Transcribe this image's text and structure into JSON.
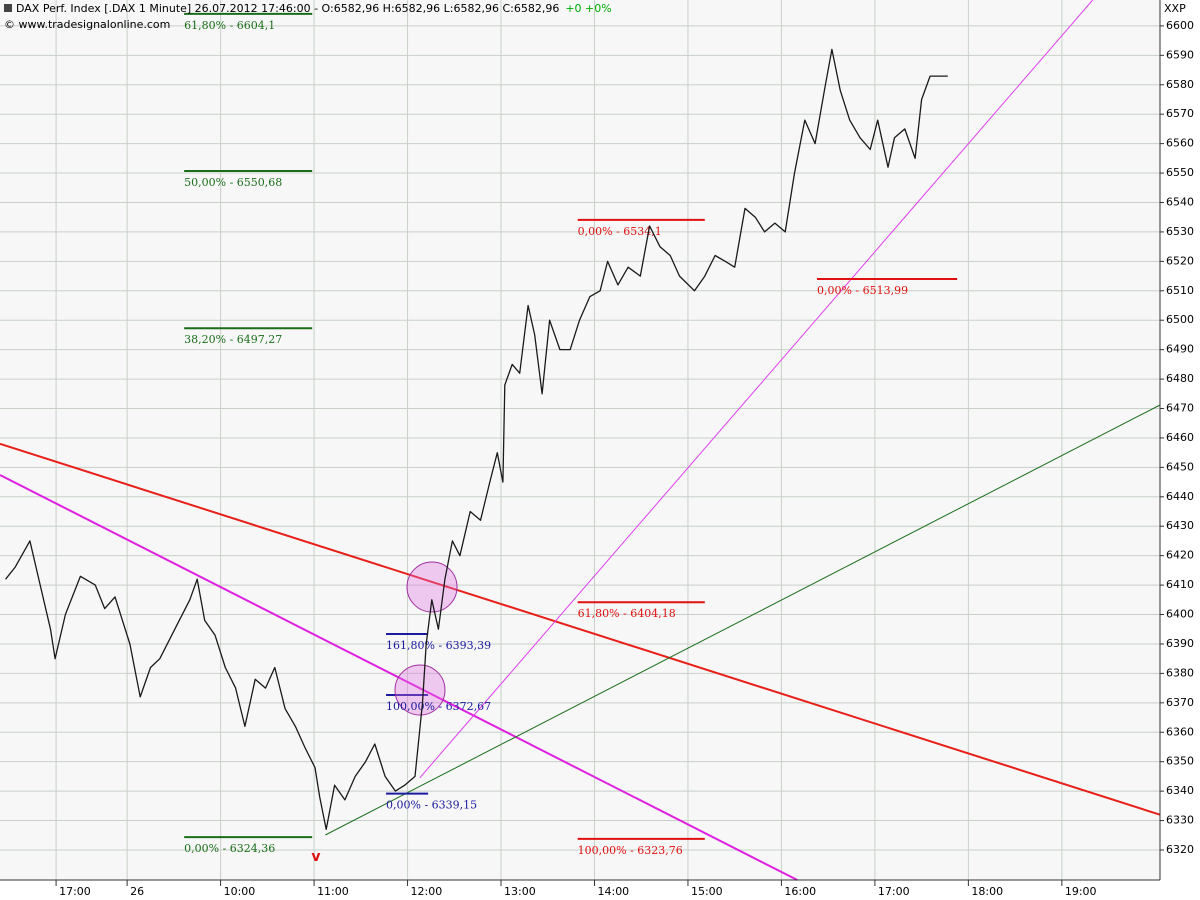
{
  "chart_data": {
    "type": "line",
    "title": "DAX Perf. Index [.DAX  1 Minute] 26.07.2012 17:46:00 - O:6582,96 H:6582,96 L:6582,96 C:6582,96",
    "change": "+0 +0%",
    "source": "© www.tradesignalonline.com",
    "axis_label": "XXP",
    "marker": "v",
    "xlim": [
      7.64,
      20.05
    ],
    "ylim": [
      6309.8,
      6608.8
    ],
    "grid": true,
    "xticks": [
      {
        "value": 8.24,
        "label": "17:00"
      },
      {
        "value": 9,
        "label": "26"
      },
      {
        "value": 10,
        "label": "10:00"
      },
      {
        "value": 11,
        "label": "11:00"
      },
      {
        "value": 12,
        "label": "12:00"
      },
      {
        "value": 13,
        "label": "13:00"
      },
      {
        "value": 14,
        "label": "14:00"
      },
      {
        "value": 15,
        "label": "15:00"
      },
      {
        "value": 16,
        "label": "16:00"
      },
      {
        "value": 17,
        "label": "17:00"
      },
      {
        "value": 18,
        "label": "18:00"
      },
      {
        "value": 19,
        "label": "19:00"
      }
    ],
    "yticks": [
      6320,
      6330,
      6340,
      6350,
      6360,
      6370,
      6380,
      6390,
      6400,
      6410,
      6420,
      6430,
      6440,
      6450,
      6460,
      6470,
      6480,
      6490,
      6500,
      6510,
      6520,
      6530,
      6540,
      6550,
      6560,
      6570,
      6580,
      6590,
      6600
    ],
    "series": [
      {
        "color": "#1a1a1a",
        "x": [
          7.7,
          7.8,
          7.96,
          8.07,
          8.18,
          8.23,
          8.34,
          8.5,
          8.66,
          8.76,
          8.87,
          9.03,
          9.14,
          9.25,
          9.35,
          9.51,
          9.67,
          9.75,
          9.83,
          9.94,
          10.05,
          10.16,
          10.26,
          10.37,
          10.48,
          10.58,
          10.69,
          10.8,
          10.9,
          11.01,
          11.06,
          11.13,
          11.22,
          11.33,
          11.44,
          11.55,
          11.65,
          11.76,
          11.87,
          11.97,
          12.08,
          12.16,
          12.2,
          12.26,
          12.33,
          12.4,
          12.48,
          12.56,
          12.67,
          12.78,
          12.88,
          12.96,
          13.02,
          13.04,
          13.12,
          13.2,
          13.29,
          13.36,
          13.44,
          13.52,
          13.63,
          13.74,
          13.84,
          13.95,
          14.06,
          14.14,
          14.25,
          14.36,
          14.49,
          14.59,
          14.7,
          14.81,
          14.91,
          15.07,
          15.18,
          15.29,
          15.4,
          15.5,
          15.61,
          15.72,
          15.82,
          15.93,
          16.04,
          16.14,
          16.25,
          16.36,
          16.47,
          16.54,
          16.63,
          16.73,
          16.84,
          16.95,
          17.03,
          17.14,
          17.21,
          17.32,
          17.43,
          17.5,
          17.59,
          17.78
        ],
        "values": [
          6412,
          6416,
          6425,
          6410,
          6395,
          6385,
          6400,
          6413,
          6410,
          6402,
          6406,
          6390,
          6372,
          6382,
          6385,
          6395,
          6405,
          6412,
          6398,
          6393,
          6382,
          6375,
          6362,
          6378,
          6375,
          6382,
          6368,
          6362,
          6355,
          6348,
          6338,
          6327,
          6342,
          6337,
          6345,
          6350,
          6356,
          6345,
          6340,
          6342,
          6345,
          6370,
          6390,
          6405,
          6395,
          6412,
          6425,
          6420,
          6435,
          6432,
          6445,
          6455,
          6445,
          6478,
          6485,
          6482,
          6505,
          6495,
          6475,
          6500,
          6490,
          6490,
          6500,
          6508,
          6510,
          6520,
          6512,
          6518,
          6515,
          6532,
          6525,
          6522,
          6515,
          6510,
          6515,
          6522,
          6520,
          6518,
          6538,
          6535,
          6530,
          6533,
          6530,
          6550,
          6568,
          6560,
          6580,
          6592,
          6578,
          6568,
          6562,
          6558,
          6568,
          6552,
          6562,
          6565,
          6555,
          6575,
          6582.96,
          6582.96
        ]
      }
    ],
    "trend_lines": [
      {
        "color": "#e8201a",
        "x": [
          7.64,
          20.05
        ],
        "values": [
          6458,
          6332
        ]
      },
      {
        "color": "#e020e0",
        "x": [
          7.64,
          16.17
        ],
        "values": [
          6447.4,
          6309.8
        ]
      },
      {
        "color": "#e040f0",
        "x": [
          12.13,
          19.33
        ],
        "values": [
          6344.5,
          6608.8
        ]
      },
      {
        "color": "#1a6e1a",
        "x": [
          11.12,
          20.05
        ],
        "values": [
          6325.1,
          6471.2
        ]
      }
    ],
    "levels": [
      {
        "color": "#1a6e1a",
        "x": [
          9.61,
          10.98
        ],
        "value": 6604.1,
        "label": "61,80% - 6604,1"
      },
      {
        "color": "#1a6e1a",
        "x": [
          9.61,
          10.98
        ],
        "value": 6550.68,
        "label": "50,00% - 6550,68"
      },
      {
        "color": "#1a6e1a",
        "x": [
          9.61,
          10.98
        ],
        "value": 6497.27,
        "label": "38,20% - 6497,27"
      },
      {
        "color": "#1a6e1a",
        "x": [
          9.61,
          10.98
        ],
        "value": 6324.36,
        "label": "0,00% - 6324,36"
      },
      {
        "color": "#e01010",
        "x": [
          13.82,
          15.18
        ],
        "value": 6534.1,
        "label": "0,00% - 6534,1"
      },
      {
        "color": "#e01010",
        "x": [
          13.82,
          15.18
        ],
        "value": 6404.18,
        "label": "61,80% - 6404,18"
      },
      {
        "color": "#e01010",
        "x": [
          13.82,
          15.18
        ],
        "value": 6323.76,
        "label": "100,00% - 6323,76"
      },
      {
        "color": "#e01010",
        "x": [
          16.38,
          17.88
        ],
        "value": 6513.99,
        "label": "0,00% - 6513,99"
      },
      {
        "color": "#1a1aa0",
        "x": [
          11.77,
          12.22
        ],
        "value": 6393.39,
        "label": "161,80% - 6393,39"
      },
      {
        "color": "#1a1aa0",
        "x": [
          11.77,
          12.22
        ],
        "value": 6372.67,
        "label": "100,00% - 6372,67"
      },
      {
        "color": "#1a1aa0",
        "x": [
          11.77,
          12.22
        ],
        "value": 6339.15,
        "label": "0,00% - 6339,15"
      }
    ]
  }
}
